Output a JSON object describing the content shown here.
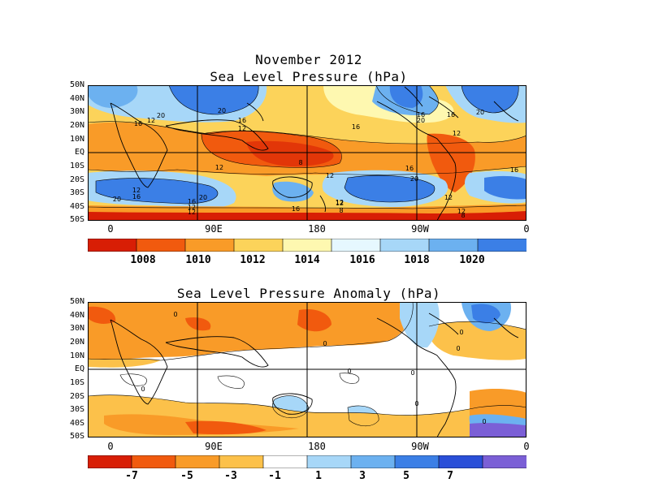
{
  "header": {
    "line1": "November 2012",
    "line2": "Sea Level Pressure (hPa)"
  },
  "anomaly": {
    "title": "Sea Level Pressure Anomaly (hPa)"
  },
  "lat_ticks": [
    "50N",
    "40N",
    "30N",
    "20N",
    "10N",
    "EQ",
    "10S",
    "20S",
    "30S",
    "40S",
    "50S"
  ],
  "lon_ticks": [
    "0",
    "90E",
    "180",
    "90W",
    "0"
  ],
  "slp_colorbar": {
    "labels": [
      "1008",
      "1010",
      "1012",
      "1014",
      "1016",
      "1018",
      "1020"
    ],
    "colors": [
      "#d81e05",
      "#f15a0e",
      "#f99b28",
      "#fcd35a",
      "#fef8b0",
      "#e6f8ff",
      "#a7d7f8",
      "#6cb1f0",
      "#3b7fe6"
    ]
  },
  "anom_colorbar": {
    "labels": [
      "-7",
      "-5",
      "-3",
      "-1",
      "1",
      "3",
      "5",
      "7"
    ],
    "colors": [
      "#d81e05",
      "#f15a0e",
      "#f99b28",
      "#fcc14a",
      "#ffffff",
      "#a7d7f8",
      "#6cb1f0",
      "#3b7fe6",
      "#2a4fd8",
      "#7b5fd6"
    ]
  },
  "slp_contour_labels": [
    "20",
    "16",
    "12",
    "16",
    "12",
    "20",
    "16",
    "12",
    "12",
    "8",
    "12",
    "16",
    "20",
    "16",
    "12",
    "12",
    "16",
    "12",
    "20",
    "20",
    "16",
    "12",
    "8",
    "12",
    "16",
    "12",
    "20",
    "16",
    "20",
    "16",
    "12",
    "8"
  ],
  "anom_contour_labels": [
    "0",
    "0",
    "0",
    "0",
    "0",
    "0",
    "0",
    "0",
    "0"
  ]
}
